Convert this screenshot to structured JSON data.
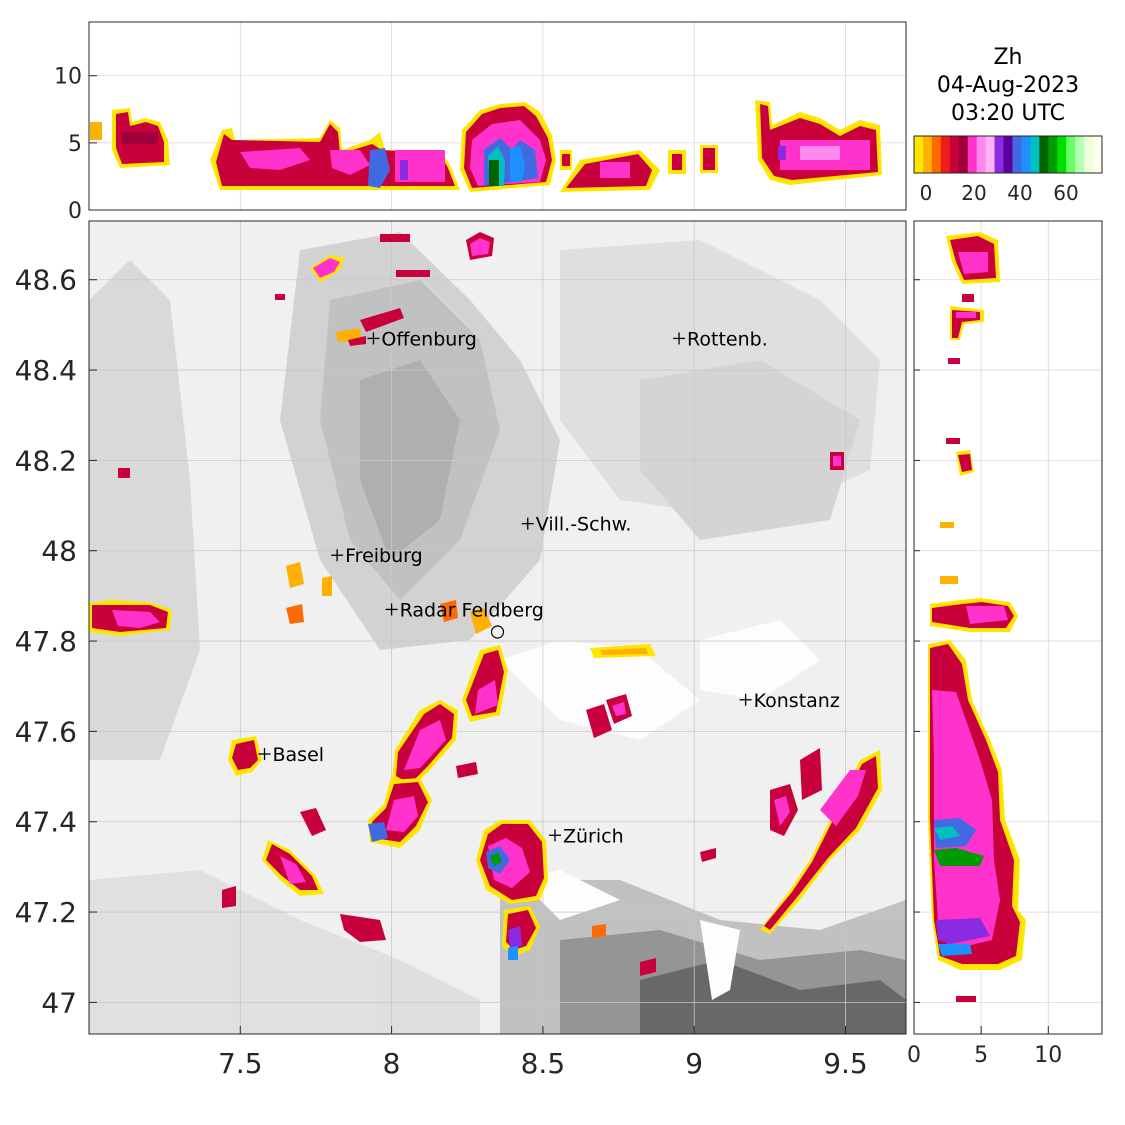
{
  "title": {
    "variable": "Zh",
    "date": "04-Aug-2023",
    "time": "03:20 UTC"
  },
  "colorbar": {
    "ticks": [
      "0",
      "20",
      "40",
      "60"
    ],
    "colors": [
      "#ffe600",
      "#ffb000",
      "#ff6a00",
      "#ee1c1c",
      "#c8003c",
      "#a0003a",
      "#ff33cc",
      "#ff88ee",
      "#ffb3f5",
      "#8a2be2",
      "#5a00a0",
      "#4169e1",
      "#1e90ff",
      "#00bfbf",
      "#006400",
      "#009b00",
      "#00e000",
      "#66ff66",
      "#b3ffb3",
      "#ecffd8",
      "#fffff0"
    ]
  },
  "map": {
    "x_ticks": [
      "7.5",
      "8",
      "8.5",
      "9",
      "9.5"
    ],
    "y_ticks": [
      "48.6",
      "48.4",
      "48.2",
      "48",
      "47.8",
      "47.6",
      "47.4",
      "47.2",
      "47"
    ],
    "xlim": [
      7.0,
      9.7
    ],
    "ylim": [
      46.93,
      48.73
    ],
    "cities": [
      {
        "name": "Offenburg",
        "lon": 7.94,
        "lat": 48.47
      },
      {
        "name": "Rottenb.",
        "lon": 8.95,
        "lat": 48.47
      },
      {
        "name": "Vill.-Schw.",
        "lon": 8.45,
        "lat": 48.06
      },
      {
        "name": "Freiburg",
        "lon": 7.82,
        "lat": 47.99
      },
      {
        "name": "Radar Feldberg",
        "lon": 8.0,
        "lat": 47.87
      },
      {
        "name": "Konstanz",
        "lon": 9.17,
        "lat": 47.67
      },
      {
        "name": "Basel",
        "lon": 7.58,
        "lat": 47.55
      },
      {
        "name": "Zürich",
        "lon": 8.54,
        "lat": 47.37
      }
    ],
    "radar_site": {
      "lon": 8.35,
      "lat": 47.82
    }
  },
  "top_panel": {
    "y_ticks": [
      "0",
      "5",
      "10"
    ],
    "ylim": [
      0,
      14
    ]
  },
  "right_panel": {
    "x_ticks": [
      "0",
      "5",
      "10"
    ],
    "xlim": [
      0,
      14
    ]
  }
}
